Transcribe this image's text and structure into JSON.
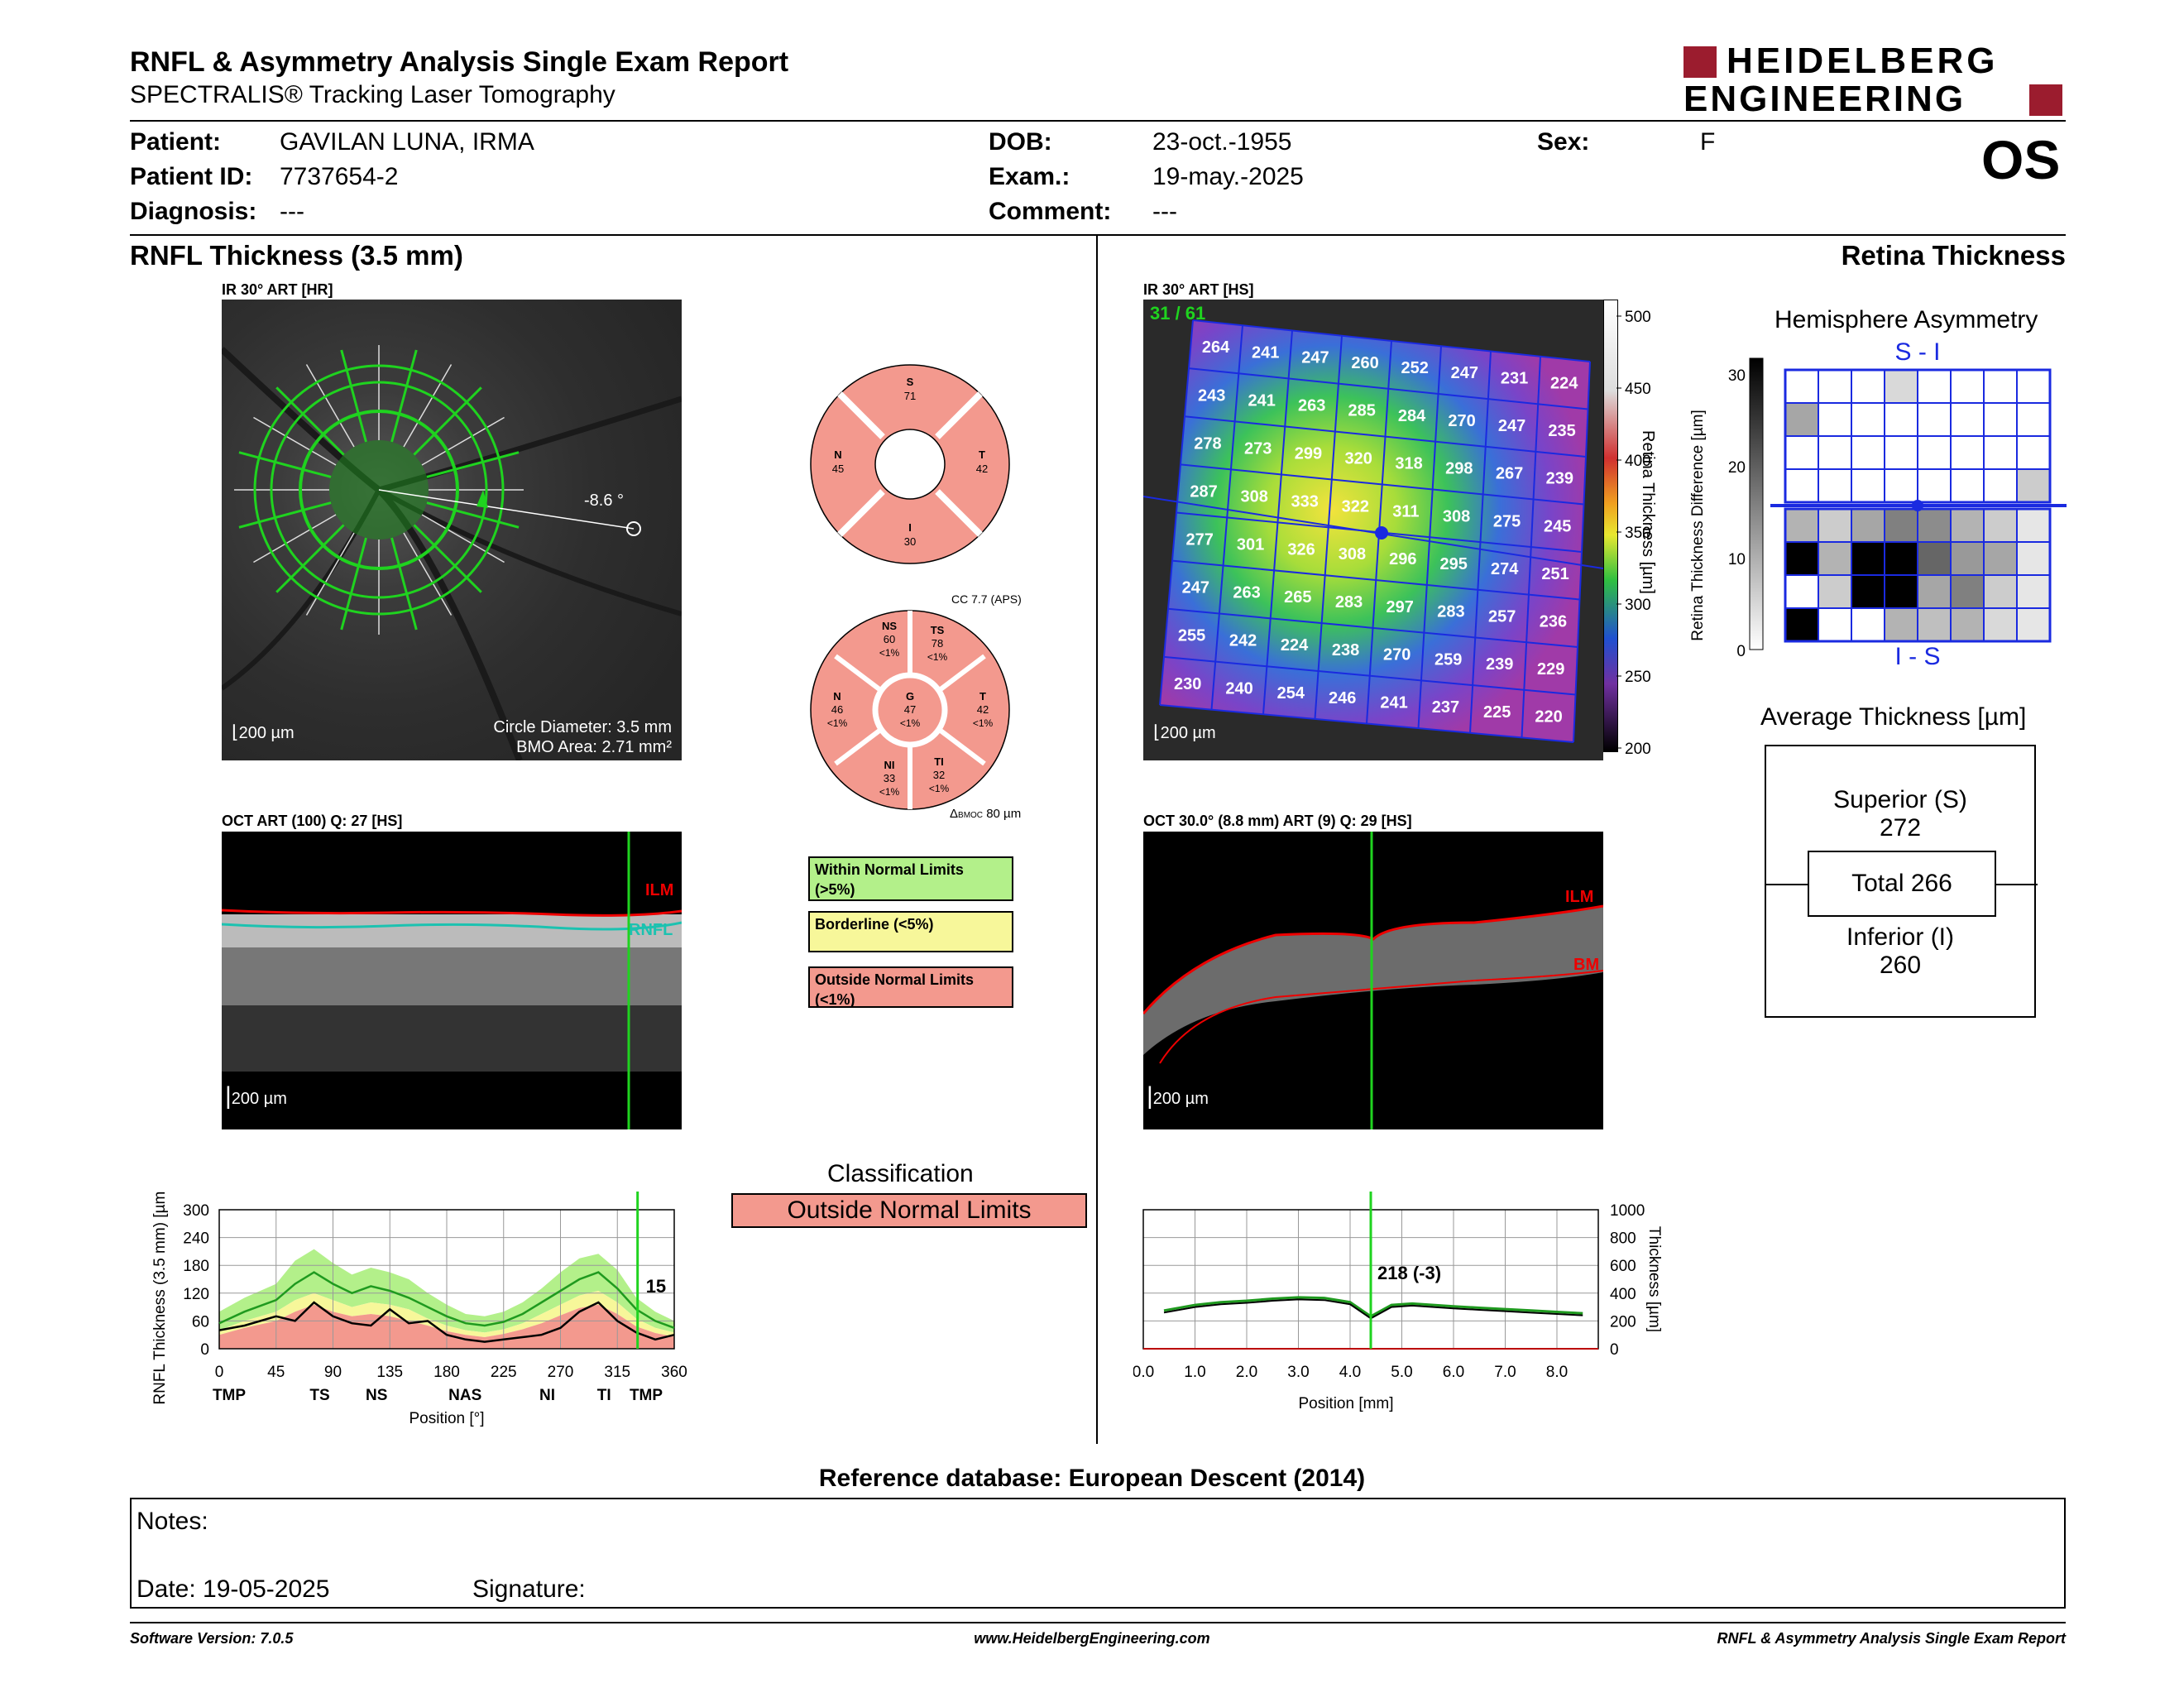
{
  "header": {
    "title": "RNFL & Asymmetry Analysis Single Exam Report",
    "subtitle": "SPECTRALIS® Tracking Laser Tomography",
    "logo_line1": "HEIDELBERG",
    "logo_line2": "ENGINEERING",
    "eye": "OS"
  },
  "patient": {
    "patient_label": "Patient:",
    "patient_value": "GAVILAN LUNA, IRMA",
    "id_label": "Patient ID:",
    "id_value": "7737654-2",
    "diagnosis_label": "Diagnosis:",
    "diagnosis_value": "---",
    "dob_label": "DOB:",
    "dob_value": "23-oct.-1955",
    "exam_label": "Exam.:",
    "exam_value": "19-may.-2025",
    "comment_label": "Comment:",
    "comment_value": "---",
    "sex_label": "Sex:",
    "sex_value": "F"
  },
  "rnfl": {
    "section_title": "RNFL Thickness (3.5 mm)",
    "ir_caption": "IR 30° ART [HR]",
    "scale_label": "200 µm",
    "angle": "-8.6 °",
    "circle_diameter": "Circle Diameter: 3.5 mm",
    "bmo_area": "BMO Area: 2.71 mm²",
    "oct_caption": "OCT ART (100) Q: 27 [HS]",
    "ilm_label": "ILM",
    "rnfl_label": "RNFL",
    "quadrants": {
      "S": {
        "label": "S",
        "value": "71"
      },
      "N": {
        "label": "N",
        "value": "45"
      },
      "T": {
        "label": "T",
        "value": "42"
      },
      "I": {
        "label": "I",
        "value": "30"
      }
    },
    "cc_label": "CC 7.7 (APS)",
    "sectors": {
      "NS": {
        "label": "NS",
        "value": "60",
        "pct": "<1%"
      },
      "TS": {
        "label": "TS",
        "value": "78",
        "pct": "<1%"
      },
      "N": {
        "label": "N",
        "value": "46",
        "pct": "<1%"
      },
      "G": {
        "label": "G",
        "value": "47",
        "pct": "<1%"
      },
      "T": {
        "label": "T",
        "value": "42",
        "pct": "<1%"
      },
      "NI": {
        "label": "NI",
        "value": "33",
        "pct": "<1%"
      },
      "TI": {
        "label": "TI",
        "value": "32",
        "pct": "<1%"
      }
    },
    "bmo_delta_prefix": "Δ",
    "bmo_delta_sub": "BMOC",
    "bmo_delta_value": "80 µm",
    "legend": [
      {
        "text": "Within Normal Limits (>5%)",
        "color": "#b3f08a"
      },
      {
        "text": "Borderline (<5%)",
        "color": "#f7f79a"
      },
      {
        "text": "Outside Normal Limits (<1%)",
        "color": "#f3998e"
      }
    ],
    "classification_title": "Classification",
    "classification_value": "Outside Normal Limits",
    "classification_color": "#f3998e"
  },
  "chart_data": [
    {
      "type": "line",
      "ylabel": "RNFL Thickness (3.5 mm) [µm]",
      "xlabel": "Position [°]",
      "ylim": [
        0,
        300
      ],
      "xlim": [
        0,
        360
      ],
      "yticks": [
        "0",
        "60",
        "120",
        "180",
        "240",
        "300"
      ],
      "xticks": [
        "0",
        "45",
        "90",
        "135",
        "180",
        "225",
        "270",
        "315",
        "360"
      ],
      "sector_labels": [
        "TMP",
        "TS",
        "NS",
        "NAS",
        "NI",
        "TI",
        "TMP"
      ],
      "marker_value": "15",
      "x": [
        0,
        20,
        45,
        60,
        75,
        90,
        105,
        120,
        135,
        150,
        165,
        180,
        195,
        210,
        225,
        240,
        255,
        270,
        285,
        300,
        315,
        330,
        345,
        360
      ],
      "series": [
        {
          "values": [
            40,
            50,
            70,
            60,
            100,
            70,
            55,
            50,
            85,
            55,
            60,
            30,
            20,
            15,
            20,
            25,
            30,
            45,
            80,
            100,
            60,
            35,
            20,
            30
          ]
        }
      ],
      "normal": {
        "upper": [
          80,
          110,
          140,
          190,
          215,
          185,
          160,
          175,
          165,
          150,
          120,
          95,
          75,
          70,
          80,
          100,
          130,
          165,
          195,
          205,
          170,
          110,
          80,
          60
        ],
        "mean": [
          55,
          80,
          105,
          140,
          165,
          140,
          120,
          135,
          125,
          110,
          90,
          70,
          55,
          50,
          58,
          75,
          100,
          125,
          150,
          165,
          130,
          85,
          60,
          45
        ],
        "borderline": [
          40,
          60,
          80,
          105,
          120,
          105,
          90,
          100,
          95,
          85,
          65,
          50,
          40,
          35,
          42,
          55,
          75,
          95,
          115,
          125,
          100,
          65,
          45,
          35
        ],
        "outside": [
          30,
          45,
          60,
          80,
          95,
          80,
          70,
          75,
          70,
          60,
          50,
          38,
          30,
          25,
          32,
          42,
          55,
          72,
          88,
          95,
          75,
          48,
          34,
          26
        ]
      }
    },
    {
      "type": "line",
      "ylabel": "Thickness [µm]",
      "xlabel": "Position [mm]",
      "ylim": [
        0,
        1000
      ],
      "xlim": [
        0,
        8.8
      ],
      "yticks": [
        "0",
        "200",
        "400",
        "600",
        "800",
        "1000"
      ],
      "xticks": [
        "0.0",
        "1.0",
        "2.0",
        "3.0",
        "4.0",
        "5.0",
        "6.0",
        "7.0",
        "8.0"
      ],
      "marker_value": "218 (-3)",
      "x": [
        0.4,
        1.0,
        1.5,
        2.0,
        2.5,
        3.0,
        3.5,
        4.0,
        4.4,
        4.8,
        5.2,
        6.0,
        6.5,
        7.0,
        7.5,
        8.0,
        8.5
      ],
      "series": [
        {
          "values": [
            260,
            300,
            320,
            330,
            345,
            355,
            350,
            320,
            218,
            300,
            310,
            290,
            280,
            270,
            260,
            250,
            240
          ]
        }
      ]
    }
  ],
  "retina": {
    "section_title": "Retina Thickness",
    "ir_caption": "IR 30° ART [HS]",
    "counter": "31 / 61",
    "scale_label": "200 µm",
    "colorbar_ticks": [
      "500",
      "450",
      "400",
      "350",
      "300",
      "250",
      "200"
    ],
    "colorbar_label": "Retina Thickness [µm]",
    "grid": [
      [
        "264",
        "241",
        "247",
        "260",
        "252",
        "247",
        "231",
        "224"
      ],
      [
        "243",
        "241",
        "263",
        "285",
        "284",
        "270",
        "247",
        "235"
      ],
      [
        "278",
        "273",
        "299",
        "320",
        "318",
        "298",
        "267",
        "239"
      ],
      [
        "287",
        "308",
        "333",
        "322",
        "311",
        "308",
        "275",
        "245"
      ],
      [
        "277",
        "301",
        "326",
        "308",
        "296",
        "295",
        "274",
        "251"
      ],
      [
        "247",
        "263",
        "265",
        "283",
        "297",
        "283",
        "257",
        "236"
      ],
      [
        "255",
        "242",
        "224",
        "238",
        "270",
        "259",
        "239",
        "229"
      ],
      [
        "230",
        "240",
        "254",
        "246",
        "241",
        "237",
        "225",
        "220"
      ]
    ],
    "oct_caption": "OCT 30.0° (8.8 mm) ART (9) Q: 29 [HS]",
    "ilm_label": "ILM",
    "bm_label": "BM"
  },
  "asymmetry": {
    "title": "Hemisphere Asymmetry",
    "top_label": "S - I",
    "bottom_label": "I - S",
    "axis_label": "Retina Thickness Difference [µm]",
    "ticks": [
      "30",
      "20",
      "10",
      "0"
    ],
    "upper_gray": [
      [
        0,
        0,
        0,
        0.15,
        0,
        0,
        0,
        0
      ],
      [
        0.35,
        0,
        0,
        0,
        0,
        0,
        0,
        0
      ],
      [
        0,
        0,
        0,
        0,
        0,
        0,
        0,
        0
      ],
      [
        0,
        0,
        0,
        0,
        0,
        0,
        0,
        0.2
      ]
    ],
    "lower_gray": [
      [
        0.3,
        0.2,
        0.35,
        0.5,
        0.45,
        0.3,
        0.2,
        0.1
      ],
      [
        1.0,
        0.3,
        1.0,
        1.0,
        0.6,
        0.4,
        0.35,
        0.1
      ],
      [
        0,
        0.2,
        1.0,
        1.0,
        0.35,
        0.5,
        0.2,
        0.1
      ],
      [
        1.0,
        0,
        0,
        0.3,
        0.25,
        0.3,
        0.15,
        0.1
      ]
    ]
  },
  "average": {
    "title": "Average Thickness [µm]",
    "superior_label": "Superior (S)",
    "superior_value": "272",
    "total_label": "Total 266",
    "inferior_label": "Inferior (I)",
    "inferior_value": "260"
  },
  "footer": {
    "reference": "Reference database: European Descent (2014)",
    "notes_label": "Notes:",
    "date_label": "Date: 19-05-2025",
    "signature_label": "Signature:",
    "software": "Software Version: 7.0.5",
    "website": "www.HeidelbergEngineering.com",
    "report_name": "RNFL & Asymmetry Analysis Single Exam Report"
  }
}
